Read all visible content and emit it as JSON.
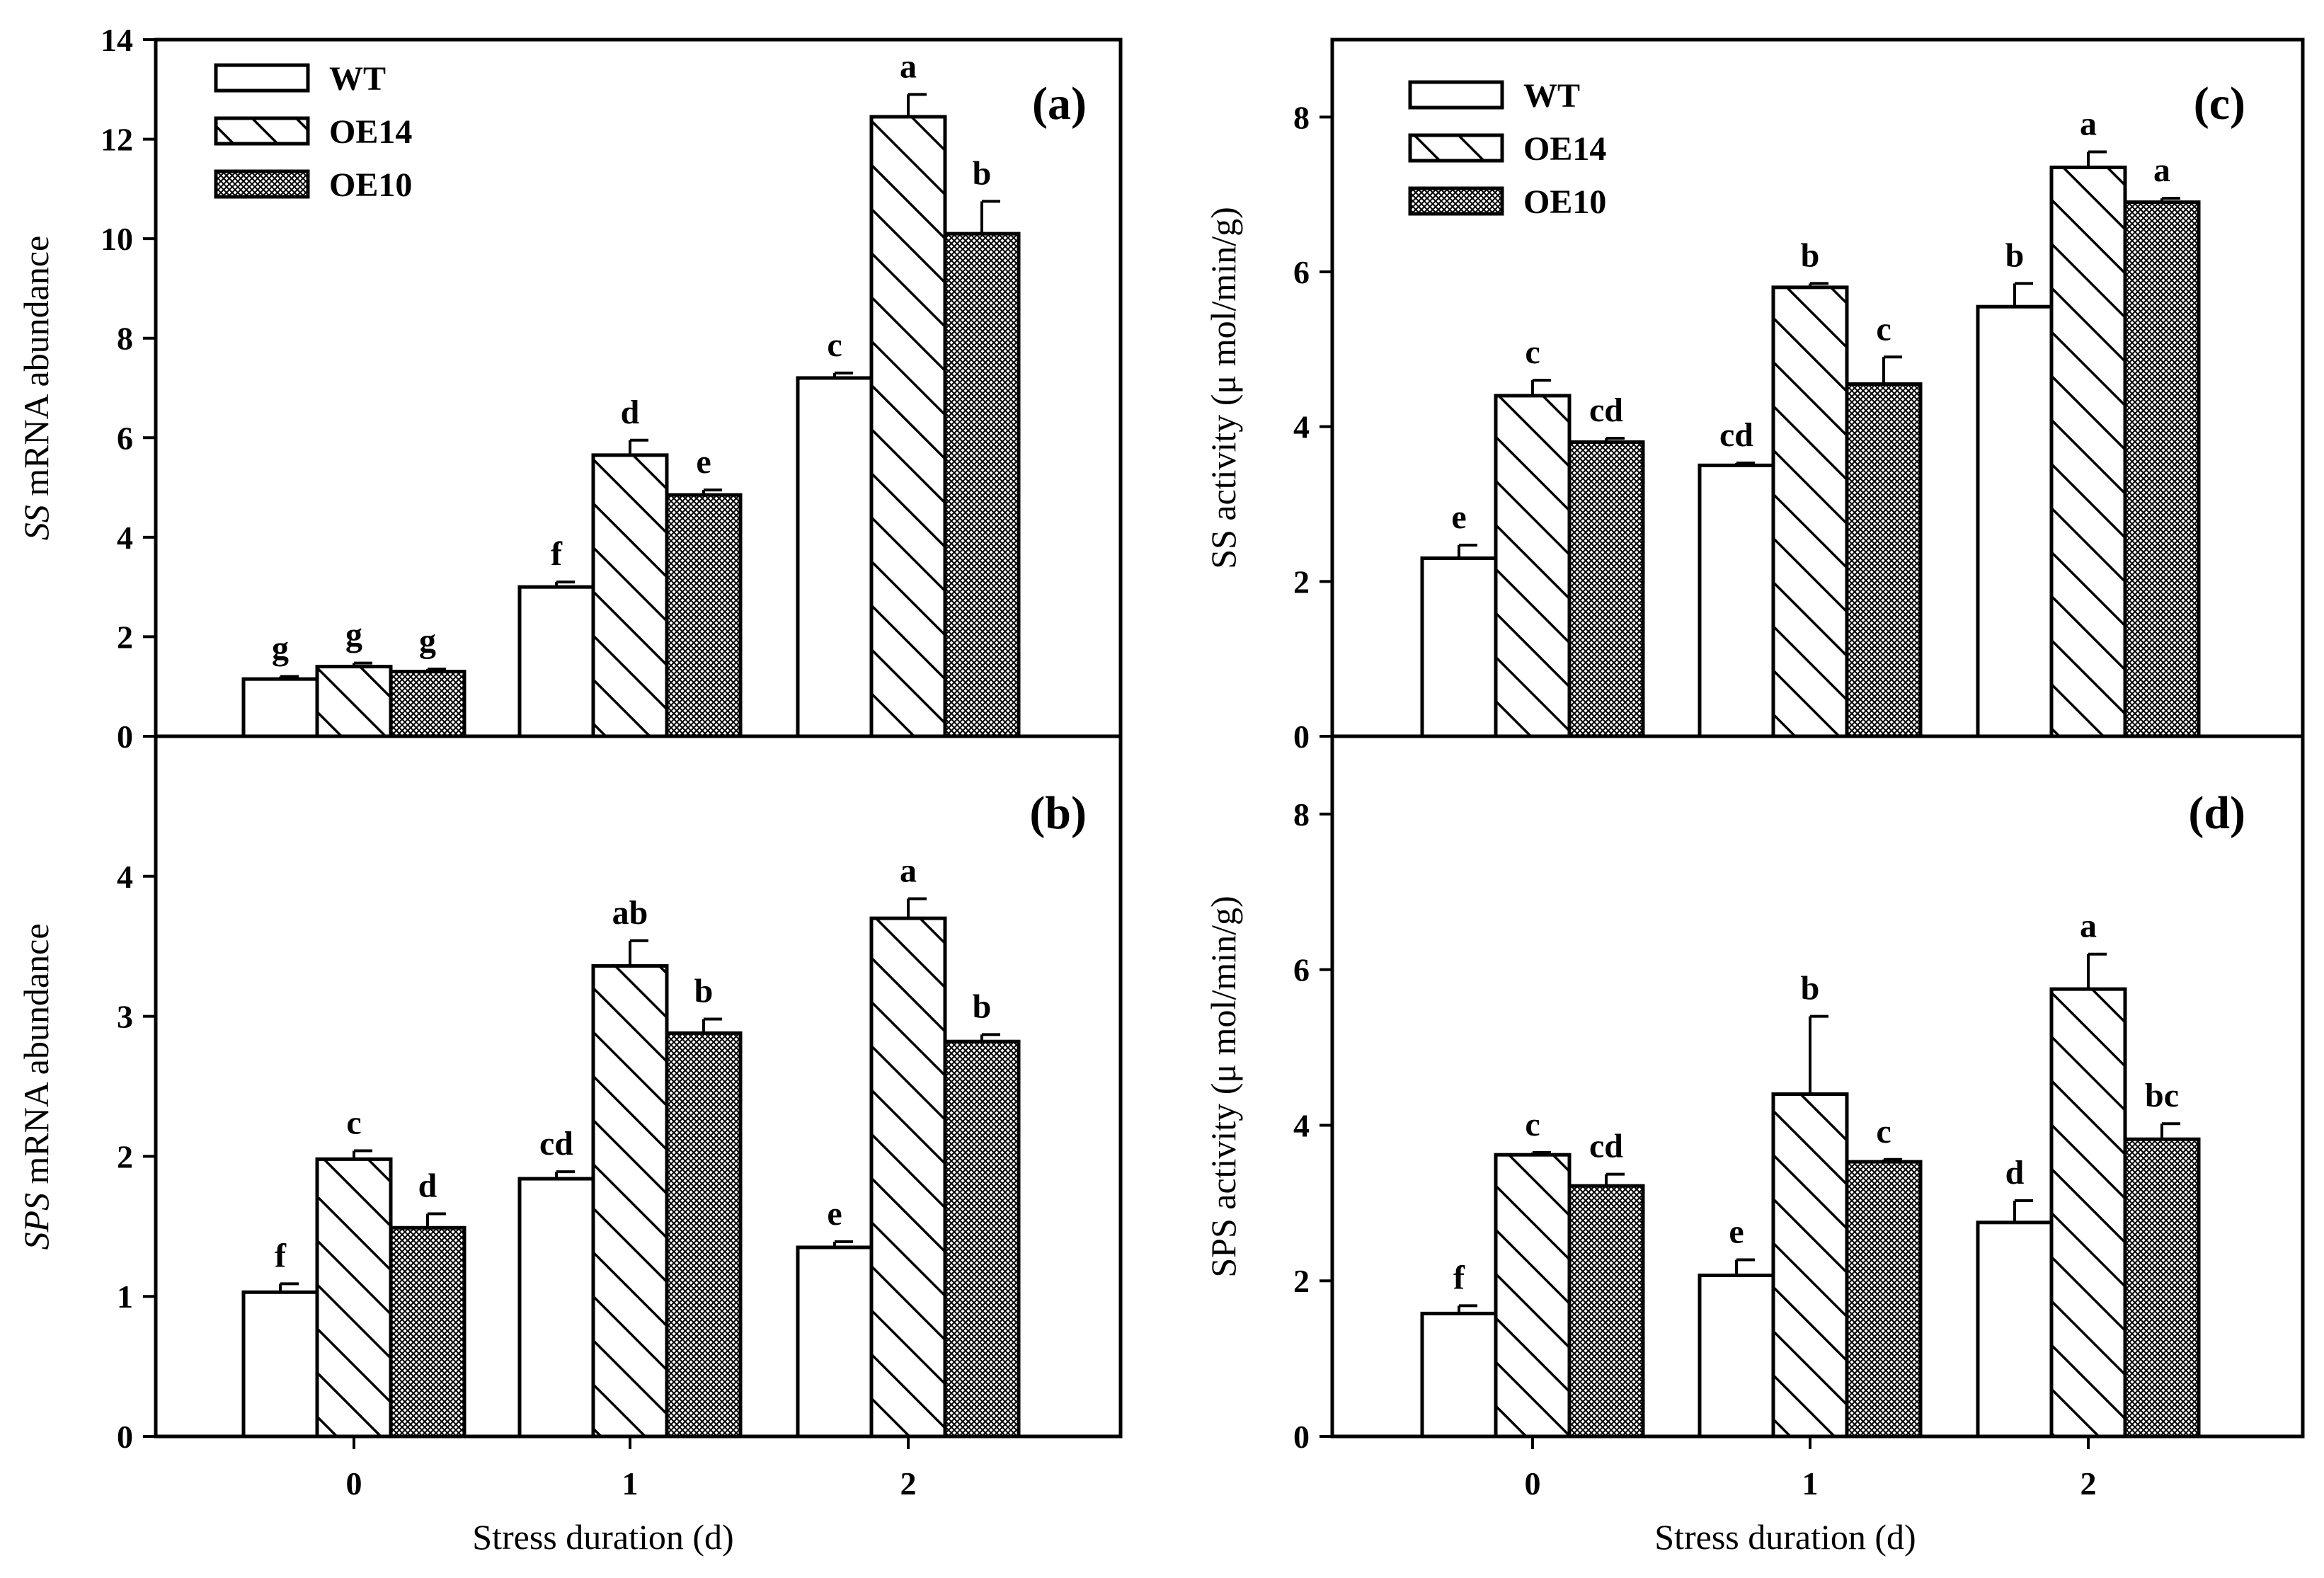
{
  "figure": {
    "xlabel_left": "Stress duration (d)",
    "xlabel_right": "Stress duration (d)"
  },
  "legend": {
    "series": [
      "WT",
      "OE14",
      "OE10"
    ]
  },
  "colors": {
    "WT": "#ffffff",
    "OE14": "hatch-diagonal",
    "OE10": "crosshatch-fine",
    "axis": "#000000"
  },
  "chart_data": [
    {
      "id": "a",
      "type": "bar",
      "panel_label": "(a)",
      "ylabel_italic": "SS",
      "ylabel_rest": " mRNA abundance",
      "categories": [
        "0",
        "1",
        "2"
      ],
      "ylim": [
        0,
        14
      ],
      "yticks": [
        0,
        2,
        4,
        6,
        8,
        10,
        12,
        14
      ],
      "legend": true,
      "series": [
        {
          "name": "WT",
          "values": [
            1.15,
            3.0,
            7.2
          ],
          "errors": [
            0.05,
            0.1,
            0.1
          ],
          "letters": [
            "g",
            "f",
            "c"
          ]
        },
        {
          "name": "OE14",
          "values": [
            1.4,
            5.65,
            12.45
          ],
          "errors": [
            0.07,
            0.3,
            0.45
          ],
          "letters": [
            "g",
            "d",
            "a"
          ]
        },
        {
          "name": "OE10",
          "values": [
            1.3,
            4.85,
            10.1
          ],
          "errors": [
            0.05,
            0.1,
            0.65
          ],
          "letters": [
            "g",
            "e",
            "b"
          ]
        }
      ]
    },
    {
      "id": "b",
      "type": "bar",
      "panel_label": "(b)",
      "ylabel_italic": "SPS",
      "ylabel_rest": " mRNA abundance",
      "categories": [
        "0",
        "1",
        "2"
      ],
      "ylim": [
        0,
        5
      ],
      "yticks": [
        0,
        1,
        2,
        3,
        4
      ],
      "legend": false,
      "series": [
        {
          "name": "WT",
          "values": [
            1.03,
            1.84,
            1.35
          ],
          "errors": [
            0.06,
            0.05,
            0.04
          ],
          "letters": [
            "f",
            "cd",
            "e"
          ]
        },
        {
          "name": "OE14",
          "values": [
            1.98,
            3.36,
            3.7
          ],
          "errors": [
            0.06,
            0.18,
            0.14
          ],
          "letters": [
            "c",
            "ab",
            "a"
          ]
        },
        {
          "name": "OE10",
          "values": [
            1.49,
            2.88,
            2.82
          ],
          "errors": [
            0.1,
            0.1,
            0.05
          ],
          "letters": [
            "d",
            "b",
            "b"
          ]
        }
      ]
    },
    {
      "id": "c",
      "type": "bar",
      "panel_label": "(c)",
      "ylabel_italic": "",
      "ylabel_rest": "SS activity (μ mol/min/g)",
      "categories": [
        "0",
        "1",
        "2"
      ],
      "ylim": [
        0,
        9
      ],
      "yticks": [
        0,
        2,
        4,
        6,
        8
      ],
      "legend": true,
      "series": [
        {
          "name": "WT",
          "values": [
            2.3,
            3.5,
            5.55
          ],
          "errors": [
            0.17,
            0.03,
            0.3
          ],
          "letters": [
            "e",
            "cd",
            "b"
          ]
        },
        {
          "name": "OE14",
          "values": [
            4.4,
            5.8,
            7.35
          ],
          "errors": [
            0.2,
            0.05,
            0.2
          ],
          "letters": [
            "c",
            "b",
            "a"
          ]
        },
        {
          "name": "OE10",
          "values": [
            3.8,
            4.55,
            6.9
          ],
          "errors": [
            0.05,
            0.35,
            0.05
          ],
          "letters": [
            "cd",
            "c",
            "a"
          ]
        }
      ]
    },
    {
      "id": "d",
      "type": "bar",
      "panel_label": "(d)",
      "ylabel_italic": "",
      "ylabel_rest": "SPS activity (μ mol/min/g)",
      "categories": [
        "0",
        "1",
        "2"
      ],
      "ylim": [
        0,
        9
      ],
      "yticks": [
        0,
        2,
        4,
        6,
        8
      ],
      "legend": false,
      "series": [
        {
          "name": "WT",
          "values": [
            1.58,
            2.07,
            2.75
          ],
          "errors": [
            0.1,
            0.2,
            0.28
          ],
          "letters": [
            "f",
            "e",
            "d"
          ]
        },
        {
          "name": "OE14",
          "values": [
            3.62,
            4.4,
            5.75
          ],
          "errors": [
            0.03,
            1.0,
            0.45
          ],
          "letters": [
            "c",
            "b",
            "a"
          ]
        },
        {
          "name": "OE10",
          "values": [
            3.22,
            3.53,
            3.82
          ],
          "errors": [
            0.15,
            0.03,
            0.2
          ],
          "letters": [
            "cd",
            "c",
            "bc"
          ]
        }
      ]
    }
  ]
}
